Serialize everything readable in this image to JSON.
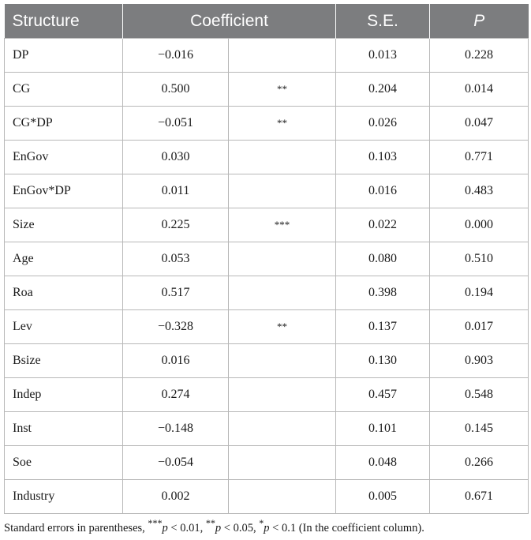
{
  "table": {
    "headers": {
      "structure": "Structure",
      "coefficient": "Coefficient",
      "se": "S.E.",
      "p": "P"
    },
    "rows": [
      {
        "name": "DP",
        "coef": "−0.016",
        "sig": "",
        "se": "0.013",
        "p": "0.228"
      },
      {
        "name": "CG",
        "coef": "0.500",
        "sig": "**",
        "se": "0.204",
        "p": "0.014"
      },
      {
        "name": "CG*DP",
        "coef": "−0.051",
        "sig": "**",
        "se": "0.026",
        "p": "0.047"
      },
      {
        "name": "EnGov",
        "coef": "0.030",
        "sig": "",
        "se": "0.103",
        "p": "0.771"
      },
      {
        "name": "EnGov*DP",
        "coef": "0.011",
        "sig": "",
        "se": "0.016",
        "p": "0.483"
      },
      {
        "name": "Size",
        "coef": "0.225",
        "sig": "***",
        "se": "0.022",
        "p": "0.000"
      },
      {
        "name": "Age",
        "coef": "0.053",
        "sig": "",
        "se": "0.080",
        "p": "0.510"
      },
      {
        "name": "Roa",
        "coef": "0.517",
        "sig": "",
        "se": "0.398",
        "p": "0.194"
      },
      {
        "name": "Lev",
        "coef": "−0.328",
        "sig": "**",
        "se": "0.137",
        "p": "0.017"
      },
      {
        "name": "Bsize",
        "coef": "0.016",
        "sig": "",
        "se": "0.130",
        "p": "0.903"
      },
      {
        "name": "Indep",
        "coef": "0.274",
        "sig": "",
        "se": "0.457",
        "p": "0.548"
      },
      {
        "name": "Inst",
        "coef": "−0.148",
        "sig": "",
        "se": "0.101",
        "p": "0.145"
      },
      {
        "name": "Soe",
        "coef": "−0.054",
        "sig": "",
        "se": "0.048",
        "p": "0.266"
      },
      {
        "name": "Industry",
        "coef": "0.002",
        "sig": "",
        "se": "0.005",
        "p": "0.671"
      }
    ]
  },
  "footnote": {
    "prefix": "Standard errors in parentheses, ",
    "s1_stars": "***",
    "s1_var": "p",
    "s1_cond": " < 0.01, ",
    "s2_stars": "**",
    "s2_var": "p",
    "s2_cond": " < 0.05, ",
    "s3_stars": "*",
    "s3_var": "p",
    "s3_cond": " < 0.1 (In the coefficient column)."
  }
}
